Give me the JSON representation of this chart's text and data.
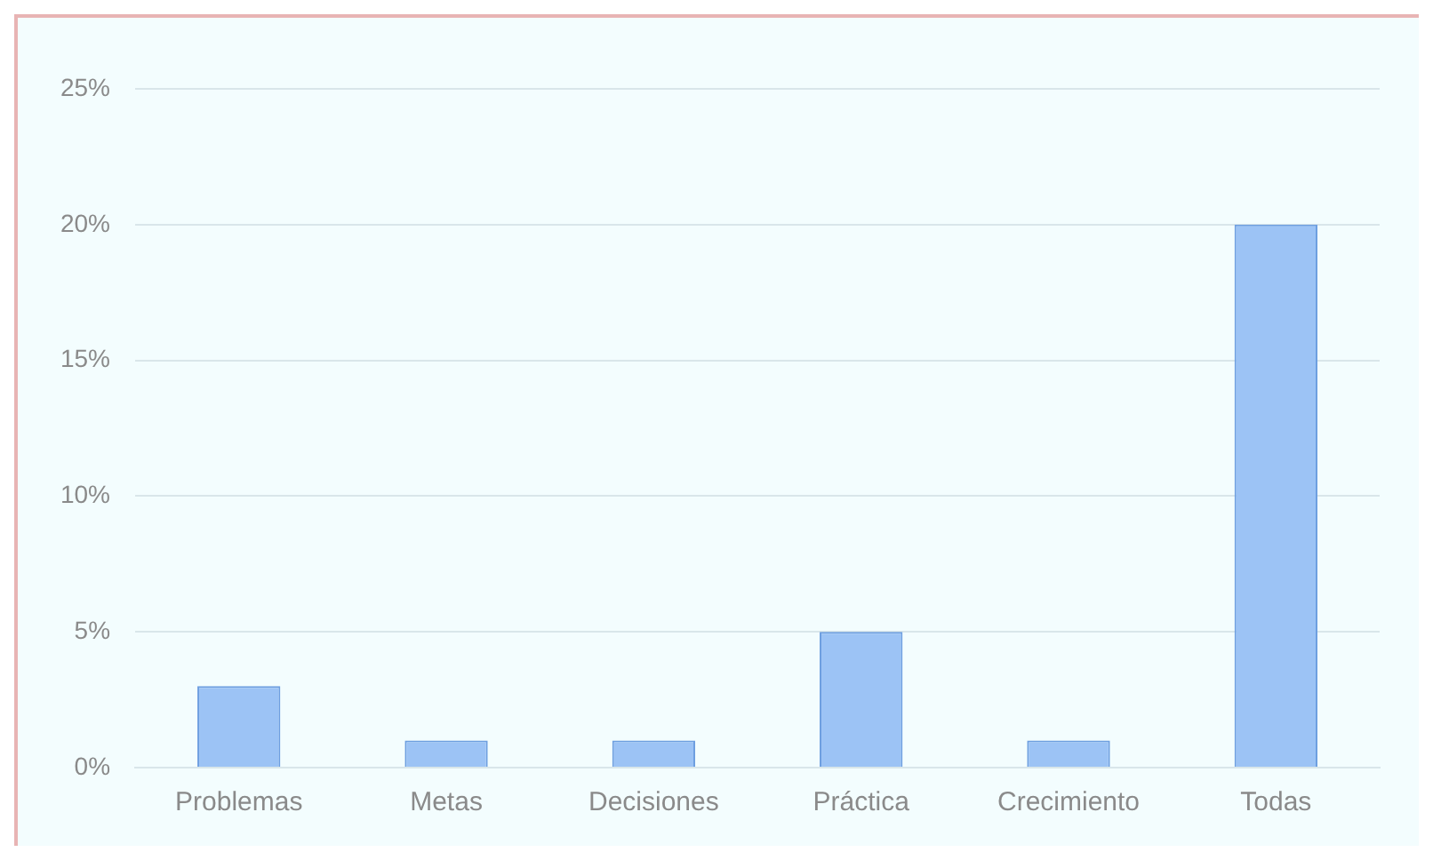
{
  "chart_data": {
    "type": "bar",
    "categories": [
      "Problemas",
      "Metas",
      "Decisiones",
      "Práctica",
      "Crecimiento",
      "Todas"
    ],
    "values": [
      3,
      1,
      1,
      5,
      1,
      20
    ],
    "color": "#9cc3f5",
    "ylim": [
      0,
      25
    ],
    "yticks": [
      {
        "value": 0,
        "label": "0%"
      },
      {
        "value": 5,
        "label": "5%"
      },
      {
        "value": 10,
        "label": "10%"
      },
      {
        "value": 15,
        "label": "15%"
      },
      {
        "value": 20,
        "label": "20%"
      },
      {
        "value": 25,
        "label": "25%"
      }
    ],
    "grid": "y",
    "legend": false
  }
}
